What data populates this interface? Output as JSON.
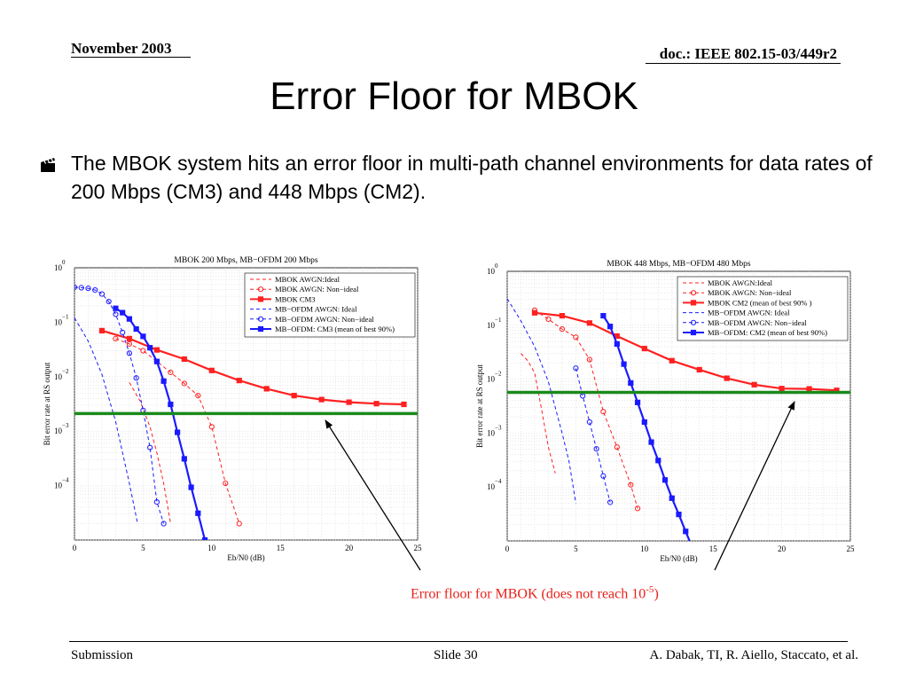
{
  "header": {
    "date": "November 2003",
    "doc": "doc.: IEEE 802.15-03/449r2"
  },
  "title": "Error Floor for MBOK",
  "bullet_text": "The MBOK system hits an error floor in multi-path channel environments for data rates of 200 Mbps (CM3) and 448 Mbps (CM2).",
  "caption": {
    "text": "Error floor for MBOK (does not reach 10",
    "exp": "-5",
    "close": ")"
  },
  "footer": {
    "left": "Submission",
    "center": "Slide 30",
    "right": "A. Dabak, TI, R. Aiello, Staccato, et al."
  },
  "colors": {
    "red": "#ff2020",
    "blue": "#1a1aff",
    "green": "#1a8a1a",
    "caption": "#e8201a"
  },
  "chart_data": [
    {
      "type": "line",
      "title": "MBOK 200 Mbps, MB−OFDM 200 Mbps",
      "xlabel": "Eb/N0 (dB)",
      "ylabel": "Bit error rate at RS output",
      "xlim": [
        0,
        25
      ],
      "ylim_log10": [
        -5,
        0
      ],
      "x_ticks": [
        "0",
        "5",
        "10",
        "15",
        "20",
        "25"
      ],
      "y_ticks": [
        {
          "base": "10",
          "exp": "0"
        },
        {
          "base": "10",
          "exp": "−1"
        },
        {
          "base": "10",
          "exp": "−2"
        },
        {
          "base": "10",
          "exp": "−3"
        },
        {
          "base": "10",
          "exp": "−4"
        }
      ],
      "grid": true,
      "legend_position": "top-right",
      "floor_line": 0.0021,
      "series": [
        {
          "name": "MBOK AWGN:Ideal",
          "color": "red",
          "style": "dashed",
          "marker": "none",
          "points": [
            [
              4,
              0.0078
            ],
            [
              4.8,
              0.0035
            ],
            [
              5.5,
              0.0012
            ],
            [
              6,
              0.0004
            ],
            [
              6.5,
              0.00011
            ],
            [
              7,
              2e-05
            ]
          ]
        },
        {
          "name": "MBOK AWGN: Non−ideal",
          "color": "red",
          "style": "dashed",
          "marker": "circle",
          "points": [
            [
              3,
              0.05
            ],
            [
              4,
              0.04
            ],
            [
              5,
              0.03
            ],
            [
              6,
              0.019
            ],
            [
              7,
              0.012
            ],
            [
              8,
              0.0075
            ],
            [
              9,
              0.0045
            ],
            [
              10,
              0.0012
            ],
            [
              11,
              0.00011
            ],
            [
              12,
              2e-05
            ]
          ]
        },
        {
          "name": "MBOK CM3",
          "color": "red",
          "style": "solid",
          "marker": "square",
          "points": [
            [
              2,
              0.07
            ],
            [
              4,
              0.05
            ],
            [
              6,
              0.031
            ],
            [
              8,
              0.021
            ],
            [
              10,
              0.013
            ],
            [
              12,
              0.0085
            ],
            [
              14,
              0.006
            ],
            [
              16,
              0.0045
            ],
            [
              18,
              0.0038
            ],
            [
              20,
              0.0034
            ],
            [
              22,
              0.0032
            ],
            [
              24,
              0.0031
            ]
          ]
        },
        {
          "name": "MB−OFDM AWGN: Ideal",
          "color": "blue",
          "style": "dashed",
          "marker": "none",
          "points": [
            [
              0,
              0.12
            ],
            [
              1,
              0.045
            ],
            [
              2,
              0.011
            ],
            [
              3,
              0.0015
            ],
            [
              4,
              0.00011
            ],
            [
              4.6,
              2e-05
            ]
          ]
        },
        {
          "name": "MB−OFDM AWGN: Non−ideal",
          "color": "blue",
          "style": "dashed",
          "marker": "circle",
          "points": [
            [
              0,
              0.44
            ],
            [
              0.5,
              0.43
            ],
            [
              1,
              0.42
            ],
            [
              1.5,
              0.39
            ],
            [
              2,
              0.33
            ],
            [
              2.5,
              0.24
            ],
            [
              3,
              0.14
            ],
            [
              3.5,
              0.065
            ],
            [
              4,
              0.027
            ],
            [
              4.5,
              0.0095
            ],
            [
              5,
              0.0024
            ],
            [
              5.5,
              0.0005
            ],
            [
              6,
              5e-05
            ],
            [
              6.5,
              2e-05
            ]
          ]
        },
        {
          "name": "MB−OFDM: CM3 (mean of best 90%)",
          "color": "blue",
          "style": "solid",
          "marker": "square",
          "points": [
            [
              3,
              0.18
            ],
            [
              3.5,
              0.15
            ],
            [
              4,
              0.115
            ],
            [
              4.5,
              0.075
            ],
            [
              5,
              0.055
            ],
            [
              5.5,
              0.034
            ],
            [
              6,
              0.019
            ],
            [
              6.5,
              0.0083
            ],
            [
              7,
              0.0031
            ],
            [
              7.5,
              0.00095
            ],
            [
              8,
              0.00031
            ],
            [
              8.5,
              9.3e-05
            ],
            [
              9,
              3.1e-05
            ],
            [
              9.5,
              1e-05
            ]
          ]
        }
      ]
    },
    {
      "type": "line",
      "title": "MBOK 448 Mbps, MB−OFDM 480 Mbps",
      "xlabel": "Eb/N0 (dB)",
      "ylabel": "Bit error rate at RS output",
      "xlim": [
        0,
        25
      ],
      "ylim_log10": [
        -5,
        0
      ],
      "x_ticks": [
        "0",
        "5",
        "10",
        "15",
        "20",
        "25"
      ],
      "y_ticks": [
        {
          "base": "10",
          "exp": "0"
        },
        {
          "base": "10",
          "exp": "−1"
        },
        {
          "base": "10",
          "exp": "−2"
        },
        {
          "base": "10",
          "exp": "−3"
        },
        {
          "base": "10",
          "exp": "−4"
        }
      ],
      "grid": true,
      "legend_position": "top-right",
      "floor_line": 0.0057,
      "series": [
        {
          "name": "MBOK AWGN:Ideal",
          "color": "red",
          "style": "dashed",
          "marker": "none",
          "points": [
            [
              1,
              0.03
            ],
            [
              1.5,
              0.022
            ],
            [
              2,
              0.013
            ],
            [
              2.5,
              0.0028
            ],
            [
              3,
              0.00055
            ],
            [
              3.5,
              0.00018
            ]
          ]
        },
        {
          "name": "MBOK AWGN: Non−ideal",
          "color": "red",
          "style": "dashed",
          "marker": "circle",
          "points": [
            [
              2,
              0.19
            ],
            [
              3,
              0.13
            ],
            [
              4,
              0.085
            ],
            [
              5,
              0.06
            ],
            [
              6,
              0.023
            ],
            [
              7,
              0.0025
            ],
            [
              8,
              0.00055
            ],
            [
              9,
              0.00011
            ],
            [
              9.5,
              4e-05
            ]
          ]
        },
        {
          "name": "MBOK CM2 (mean of best 90% )",
          "color": "red",
          "style": "solid",
          "marker": "square",
          "points": [
            [
              2,
              0.17
            ],
            [
              4,
              0.15
            ],
            [
              6,
              0.11
            ],
            [
              8,
              0.063
            ],
            [
              10,
              0.037
            ],
            [
              12,
              0.022
            ],
            [
              14,
              0.015
            ],
            [
              16,
              0.0104
            ],
            [
              18,
              0.0079
            ],
            [
              20,
              0.0067
            ],
            [
              22,
              0.0066
            ],
            [
              24,
              0.0062
            ]
          ]
        },
        {
          "name": "MB−OFDM AWGN: Ideal",
          "color": "blue",
          "style": "dashed",
          "marker": "none",
          "points": [
            [
              0,
              0.31
            ],
            [
              1,
              0.12
            ],
            [
              2,
              0.04
            ],
            [
              3,
              0.009
            ],
            [
              4,
              0.001
            ],
            [
              4.5,
              0.0003
            ],
            [
              5,
              5e-05
            ]
          ]
        },
        {
          "name": "MB−OFDM AWGN: Non−ideal",
          "color": "blue",
          "style": "dashed",
          "marker": "circle",
          "points": [
            [
              5,
              0.016
            ],
            [
              5.5,
              0.0049
            ],
            [
              6,
              0.0016
            ],
            [
              6.5,
              0.00051
            ],
            [
              7,
              0.00016
            ],
            [
              7.5,
              5.2e-05
            ]
          ]
        },
        {
          "name": "MB−OFDM: CM2 (mean of best 90%)",
          "color": "blue",
          "style": "solid",
          "marker": "square",
          "points": [
            [
              7,
              0.15
            ],
            [
              7.5,
              0.095
            ],
            [
              8,
              0.045
            ],
            [
              8.5,
              0.019
            ],
            [
              9,
              0.0085
            ],
            [
              9.5,
              0.0037
            ],
            [
              10,
              0.0016
            ],
            [
              10.5,
              0.00068
            ],
            [
              11,
              0.00031
            ],
            [
              11.5,
              0.000135
            ],
            [
              12,
              6.2e-05
            ],
            [
              12.5,
              3.1e-05
            ],
            [
              13,
              1.5e-05
            ],
            [
              13.5,
              7.4e-06
            ],
            [
              14,
              3.5e-06
            ]
          ]
        }
      ]
    }
  ]
}
